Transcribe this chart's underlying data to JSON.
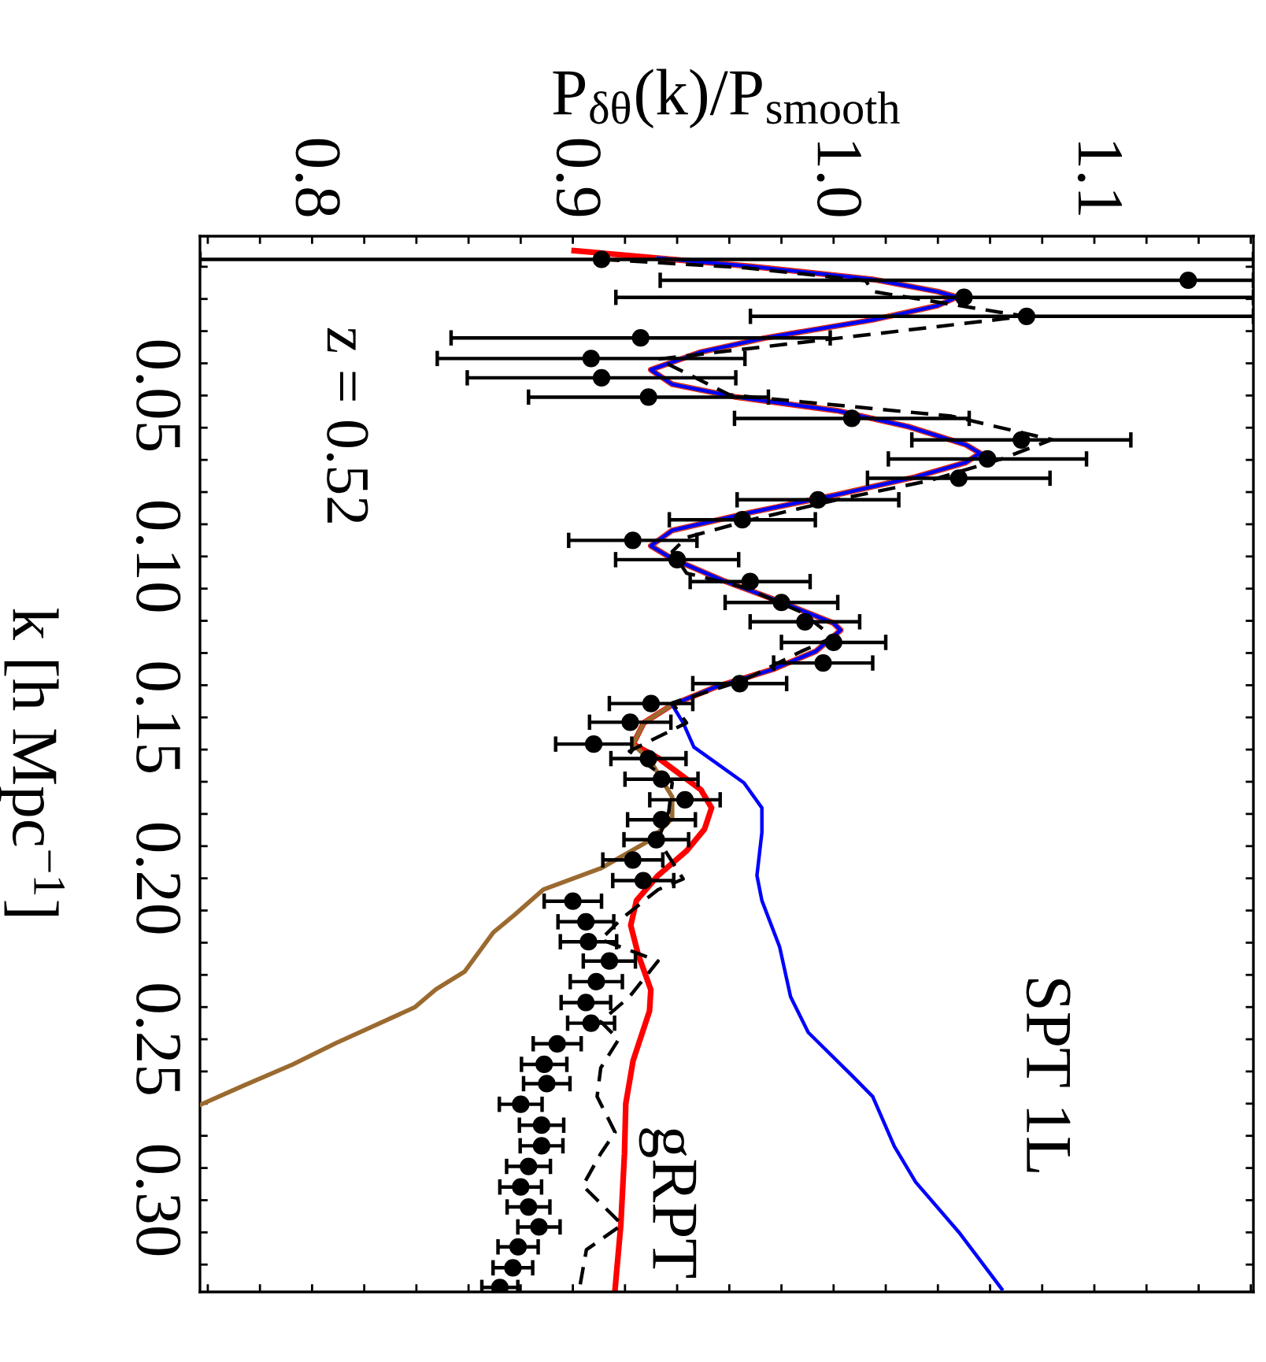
{
  "chart_data": {
    "type": "line",
    "orientation": "horizontal",
    "xlabel": "P$_{δθ}$(k)/P$_{smooth}$",
    "ylabel": "k [h Mpc$^{−1}$]",
    "annotations": [
      "z = 0.52"
    ],
    "xlim": [
      0.757,
      1.161
    ],
    "xticks": [
      {
        "value": 0.76,
        "label": null
      },
      {
        "value": 0.78,
        "label": null
      },
      0.8,
      {
        "value": 0.82,
        "label": null
      },
      {
        "value": 0.84,
        "label": null
      },
      {
        "value": 0.86,
        "label": null
      },
      {
        "value": 0.88,
        "label": null
      },
      0.9,
      {
        "value": 0.92,
        "label": null
      },
      {
        "value": 0.94,
        "label": null
      },
      {
        "value": 0.96,
        "label": null
      },
      {
        "value": 0.98,
        "label": null
      },
      {
        "value": 1.0,
        "label": "1.0"
      },
      {
        "value": 1.02,
        "label": null
      },
      {
        "value": 1.04,
        "label": null
      },
      {
        "value": 1.06,
        "label": null
      },
      {
        "value": 1.08,
        "label": null
      },
      1.1,
      {
        "value": 1.12,
        "label": null
      },
      {
        "value": 1.14,
        "label": null
      },
      {
        "value": 1.16,
        "label": null
      }
    ],
    "ylim": [
      0.3285,
      0.0005
    ],
    "yticks": [
      {
        "value": 0.01,
        "label": null
      },
      {
        "value": 0.02,
        "label": null
      },
      {
        "value": 0.03,
        "label": null
      },
      {
        "value": 0.04,
        "label": null
      },
      0.05,
      {
        "value": 0.06,
        "label": null
      },
      {
        "value": 0.07,
        "label": null
      },
      {
        "value": 0.08,
        "label": null
      },
      {
        "value": 0.09,
        "label": null
      },
      {
        "value": 0.1,
        "label": "0.10"
      },
      {
        "value": 0.11,
        "label": null
      },
      {
        "value": 0.12,
        "label": null
      },
      {
        "value": 0.13,
        "label": null
      },
      {
        "value": 0.14,
        "label": null
      },
      0.15,
      {
        "value": 0.16,
        "label": null
      },
      {
        "value": 0.17,
        "label": null
      },
      {
        "value": 0.18,
        "label": null
      },
      {
        "value": 0.19,
        "label": null
      },
      {
        "value": 0.2,
        "label": "0.20"
      },
      {
        "value": 0.21,
        "label": null
      },
      {
        "value": 0.22,
        "label": null
      },
      {
        "value": 0.23,
        "label": null
      },
      {
        "value": 0.24,
        "label": null
      },
      0.25,
      {
        "value": 0.26,
        "label": null
      },
      {
        "value": 0.27,
        "label": null
      },
      {
        "value": 0.28,
        "label": null
      },
      {
        "value": 0.29,
        "label": null
      },
      {
        "value": 0.3,
        "label": "0.30"
      },
      {
        "value": 0.31,
        "label": null
      },
      {
        "value": 0.32,
        "label": null
      }
    ],
    "grid": false,
    "legend": false,
    "series": [
      {
        "name": "SPT 1L",
        "color": "#0000ff",
        "line_style": "solid",
        "marker": "none",
        "x": [
          0.0073,
          0.0099,
          0.0139,
          0.0177,
          0.0194,
          0.0221,
          0.0265,
          0.0321,
          0.0365,
          0.042,
          0.0465,
          0.0505,
          0.0547,
          0.0597,
          0.0653,
          0.0679,
          0.0708,
          0.0753,
          0.0808,
          0.0863,
          0.0919,
          0.0967,
          0.1007,
          0.1074,
          0.114,
          0.1207,
          0.1229,
          0.1295,
          0.1351,
          0.1406,
          0.1461,
          0.1517,
          0.1592,
          0.1703,
          0.1781,
          0.1858,
          0.1991,
          0.2069,
          0.2213,
          0.2368,
          0.2479,
          0.2611,
          0.2678,
          0.2833,
          0.2944,
          0.3099,
          0.3276
        ],
        "values": [
          0.9327,
          0.9684,
          1.015,
          1.0398,
          1.0474,
          1.0398,
          1.015,
          0.9738,
          0.9491,
          0.9299,
          0.9381,
          0.9628,
          1.0013,
          1.0288,
          1.0507,
          1.0562,
          1.0507,
          1.0315,
          1.0013,
          0.9684,
          0.9381,
          0.9299,
          0.9381,
          0.9574,
          0.9794,
          0.9999,
          1.0027,
          0.9931,
          0.9766,
          0.9546,
          0.9381,
          0.9423,
          0.9464,
          0.9656,
          0.9725,
          0.9725,
          0.9706,
          0.9725,
          0.9793,
          0.9835,
          0.9903,
          1.0068,
          1.015,
          1.0233,
          1.0315,
          1.048,
          1.0645
        ]
      },
      {
        "color": "#9b6a2f",
        "line_style": "solid",
        "marker": "none",
        "x": [
          0.0073,
          0.0099,
          0.0139,
          0.0177,
          0.0194,
          0.0221,
          0.0265,
          0.0321,
          0.0365,
          0.042,
          0.0465,
          0.0505,
          0.0547,
          0.0597,
          0.0653,
          0.0679,
          0.0708,
          0.0753,
          0.0808,
          0.0863,
          0.0919,
          0.0967,
          0.1007,
          0.1074,
          0.114,
          0.1207,
          0.1229,
          0.1295,
          0.1351,
          0.1406,
          0.1461,
          0.1517,
          0.1583,
          0.1637,
          0.1747,
          0.1814,
          0.188,
          0.1969,
          0.2035,
          0.2113,
          0.2168,
          0.229,
          0.2345,
          0.2401,
          0.2512,
          0.2578,
          0.2645,
          0.2704
        ],
        "values": [
          0.9327,
          0.9684,
          1.015,
          1.0398,
          1.0474,
          1.0398,
          1.015,
          0.9738,
          0.9491,
          0.9299,
          0.9381,
          0.9628,
          1.0013,
          1.0288,
          1.0507,
          1.0562,
          1.0507,
          1.0315,
          1.0013,
          0.9684,
          0.9381,
          0.9299,
          0.9381,
          0.9574,
          0.9794,
          0.9999,
          1.0027,
          0.9931,
          0.9766,
          0.9546,
          0.9381,
          0.9272,
          0.9231,
          0.9299,
          0.9381,
          0.9381,
          0.9299,
          0.9107,
          0.8887,
          0.8777,
          0.8695,
          0.8585,
          0.8475,
          0.8393,
          0.8091,
          0.7926,
          0.7734,
          0.757
        ]
      },
      {
        "name": "gRPT",
        "color": "#ff0000",
        "line_style": "solid",
        "marker": "none",
        "x": [
          0.005,
          0.0073,
          0.0099,
          0.0139,
          0.0177,
          0.0194,
          0.0221,
          0.0265,
          0.0321,
          0.0365,
          0.042,
          0.0465,
          0.0505,
          0.0547,
          0.0597,
          0.0653,
          0.0679,
          0.0708,
          0.0753,
          0.0808,
          0.0863,
          0.0919,
          0.0967,
          0.1007,
          0.1074,
          0.114,
          0.1207,
          0.1229,
          0.1295,
          0.1351,
          0.1406,
          0.1461,
          0.1517,
          0.1583,
          0.1626,
          0.1725,
          0.1781,
          0.1847,
          0.1914,
          0.1991,
          0.2069,
          0.2146,
          0.2235,
          0.2346,
          0.2412,
          0.2567,
          0.27,
          0.2855,
          0.3076,
          0.3276
        ],
        "values": [
          0.9005,
          0.9327,
          0.9684,
          1.015,
          1.0398,
          1.0474,
          1.0398,
          1.015,
          0.9738,
          0.9491,
          0.9299,
          0.9381,
          0.9628,
          1.0013,
          1.0288,
          1.0507,
          1.0562,
          1.0507,
          1.0315,
          1.0013,
          0.9684,
          0.9381,
          0.9299,
          0.9381,
          0.9574,
          0.9794,
          0.9999,
          1.0027,
          0.9931,
          0.9766,
          0.9546,
          0.9381,
          0.9272,
          0.9231,
          0.9327,
          0.9491,
          0.9532,
          0.9505,
          0.9437,
          0.9327,
          0.9244,
          0.9222,
          0.925,
          0.9299,
          0.9294,
          0.9231,
          0.9203,
          0.9198,
          0.9184,
          0.9162
        ]
      },
      {
        "color": "#000000",
        "line_style": "dashed",
        "marker": "none",
        "x": [
          0.0077,
          0.0103,
          0.0143,
          0.0177,
          0.0254,
          0.0387,
          0.0498,
          0.0564,
          0.0637,
          0.0697,
          0.0764,
          0.0819,
          0.0886,
          0.0941,
          0.0985,
          0.1052,
          0.1096,
          0.1173,
          0.1251,
          0.1295,
          0.1384,
          0.1455,
          0.1517,
          0.1605,
          0.1703,
          0.1792,
          0.188,
          0.2002,
          0.2035,
          0.2124,
          0.219,
          0.2257,
          0.2368,
          0.2445,
          0.2501,
          0.2589,
          0.2678,
          0.2789,
          0.2855,
          0.2955,
          0.3076,
          0.3154,
          0.3276
        ],
        "values": [
          0.9112,
          0.9656,
          1.0123,
          1.015,
          1.0735,
          0.9327,
          0.9601,
          1.0452,
          1.0837,
          1.0645,
          1.037,
          1.004,
          0.9684,
          0.9436,
          0.9381,
          0.9436,
          0.9656,
          0.9876,
          0.9999,
          0.9876,
          0.9656,
          0.9381,
          0.9436,
          0.9217,
          0.9381,
          0.9368,
          0.9327,
          0.9423,
          0.9327,
          0.9189,
          0.9107,
          0.9327,
          0.9217,
          0.9107,
          0.9175,
          0.9107,
          0.9093,
          0.9162,
          0.9107,
          0.9038,
          0.9189,
          0.9052,
          0.9025
        ]
      },
      {
        "type": "scatter",
        "color": "#000000",
        "marker": "circle",
        "x": [
          0.0077,
          0.0142,
          0.0195,
          0.0254,
          0.0321,
          0.0385,
          0.0445,
          0.0505,
          0.0571,
          0.0638,
          0.0697,
          0.0757,
          0.0824,
          0.0886,
          0.095,
          0.101,
          0.1078,
          0.1143,
          0.1203,
          0.1267,
          0.1331,
          0.1395,
          0.1457,
          0.1515,
          0.1583,
          0.1628,
          0.1692,
          0.1756,
          0.1818,
          0.188,
          0.1943,
          0.2007,
          0.2071,
          0.2135,
          0.2197,
          0.2257,
          0.2321,
          0.2386,
          0.245,
          0.2514,
          0.2578,
          0.2638,
          0.2702,
          0.2767,
          0.2831,
          0.2895,
          0.2959,
          0.3021,
          0.3083,
          0.3145,
          0.321,
          0.3271
        ],
        "values": [
          0.911,
          1.136,
          1.05,
          1.074,
          0.926,
          0.907,
          0.911,
          0.929,
          1.007,
          1.072,
          1.059,
          1.048,
          0.994,
          0.965,
          0.923,
          0.94,
          0.968,
          0.98,
          0.989,
          1.0,
          0.996,
          0.964,
          0.93,
          0.922,
          0.908,
          0.929,
          0.934,
          0.943,
          0.934,
          0.932,
          0.923,
          0.927,
          0.9,
          0.905,
          0.906,
          0.914,
          0.909,
          0.905,
          0.907,
          0.894,
          0.889,
          0.89,
          0.88,
          0.888,
          0.888,
          0.883,
          0.88,
          0.883,
          0.887,
          0.879,
          0.877,
          0.872
        ],
        "errors": [
          [
            0.757,
            1.161
          ],
          [
            0.9335,
            1.161
          ],
          [
            0.9165,
            1.161
          ],
          [
            0.9681,
            1.161
          ],
          0.0727,
          0.059,
          0.0515,
          0.046,
          0.045,
          0.042,
          0.038,
          0.035,
          0.031,
          0.028,
          0.0246,
          0.0236,
          0.023,
          0.0216,
          0.021,
          0.02,
          0.019,
          0.018,
          0.016,
          0.0156,
          0.0146,
          0.0144,
          0.014,
          0.0135,
          0.013,
          0.0124,
          0.0115,
          0.0117,
          0.011,
          0.0107,
          0.0108,
          0.01,
          0.01,
          0.0095,
          0.009,
          0.0092,
          0.0087,
          0.0089,
          0.0082,
          0.0085,
          0.0082,
          0.0084,
          0.008,
          0.0082,
          0.0081,
          0.0077,
          0.0076,
          0.0069
        ]
      }
    ]
  }
}
